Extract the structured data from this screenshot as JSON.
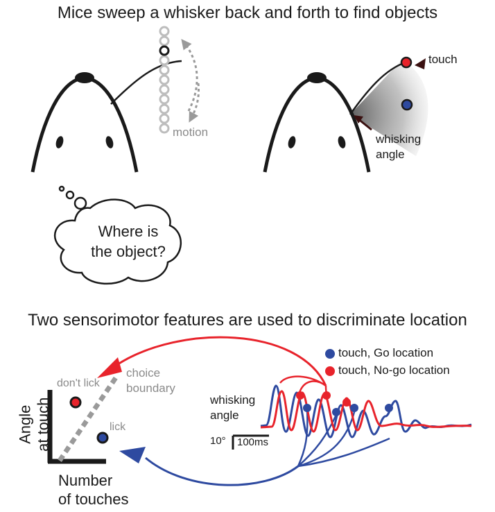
{
  "titles": {
    "top": "Mice sweep a whisker back and forth to find objects",
    "bottom": "Two sensorimotor features are used to discriminate location"
  },
  "panel_left": {
    "motion_label": "motion"
  },
  "panel_right": {
    "touch_label": "touch",
    "angle_label_line1": "whisking",
    "angle_label_line2": "angle"
  },
  "thought_bubble": {
    "line1": "Where is",
    "line2": "the object?"
  },
  "scatter": {
    "y_label_line1": "Angle",
    "y_label_line2": "at touch",
    "x_label_line1": "Number",
    "x_label_line2": "of touches",
    "dont_lick_label": "don't lick",
    "lick_label": "lick",
    "boundary_line1": "choice",
    "boundary_line2": "boundary"
  },
  "trace": {
    "label_line1": "whisking",
    "label_line2": "angle",
    "scale_deg": "10°",
    "scale_ms": "100ms"
  },
  "legend": [
    {
      "label": "touch, Go location",
      "color": "#2e4aa0"
    },
    {
      "label": "touch, No-go location",
      "color": "#e8232b"
    }
  ],
  "colors": {
    "go": "#2e4aa0",
    "nogo": "#e8232b",
    "grey": "#9a9a9a",
    "ink": "#1a1a1a"
  }
}
